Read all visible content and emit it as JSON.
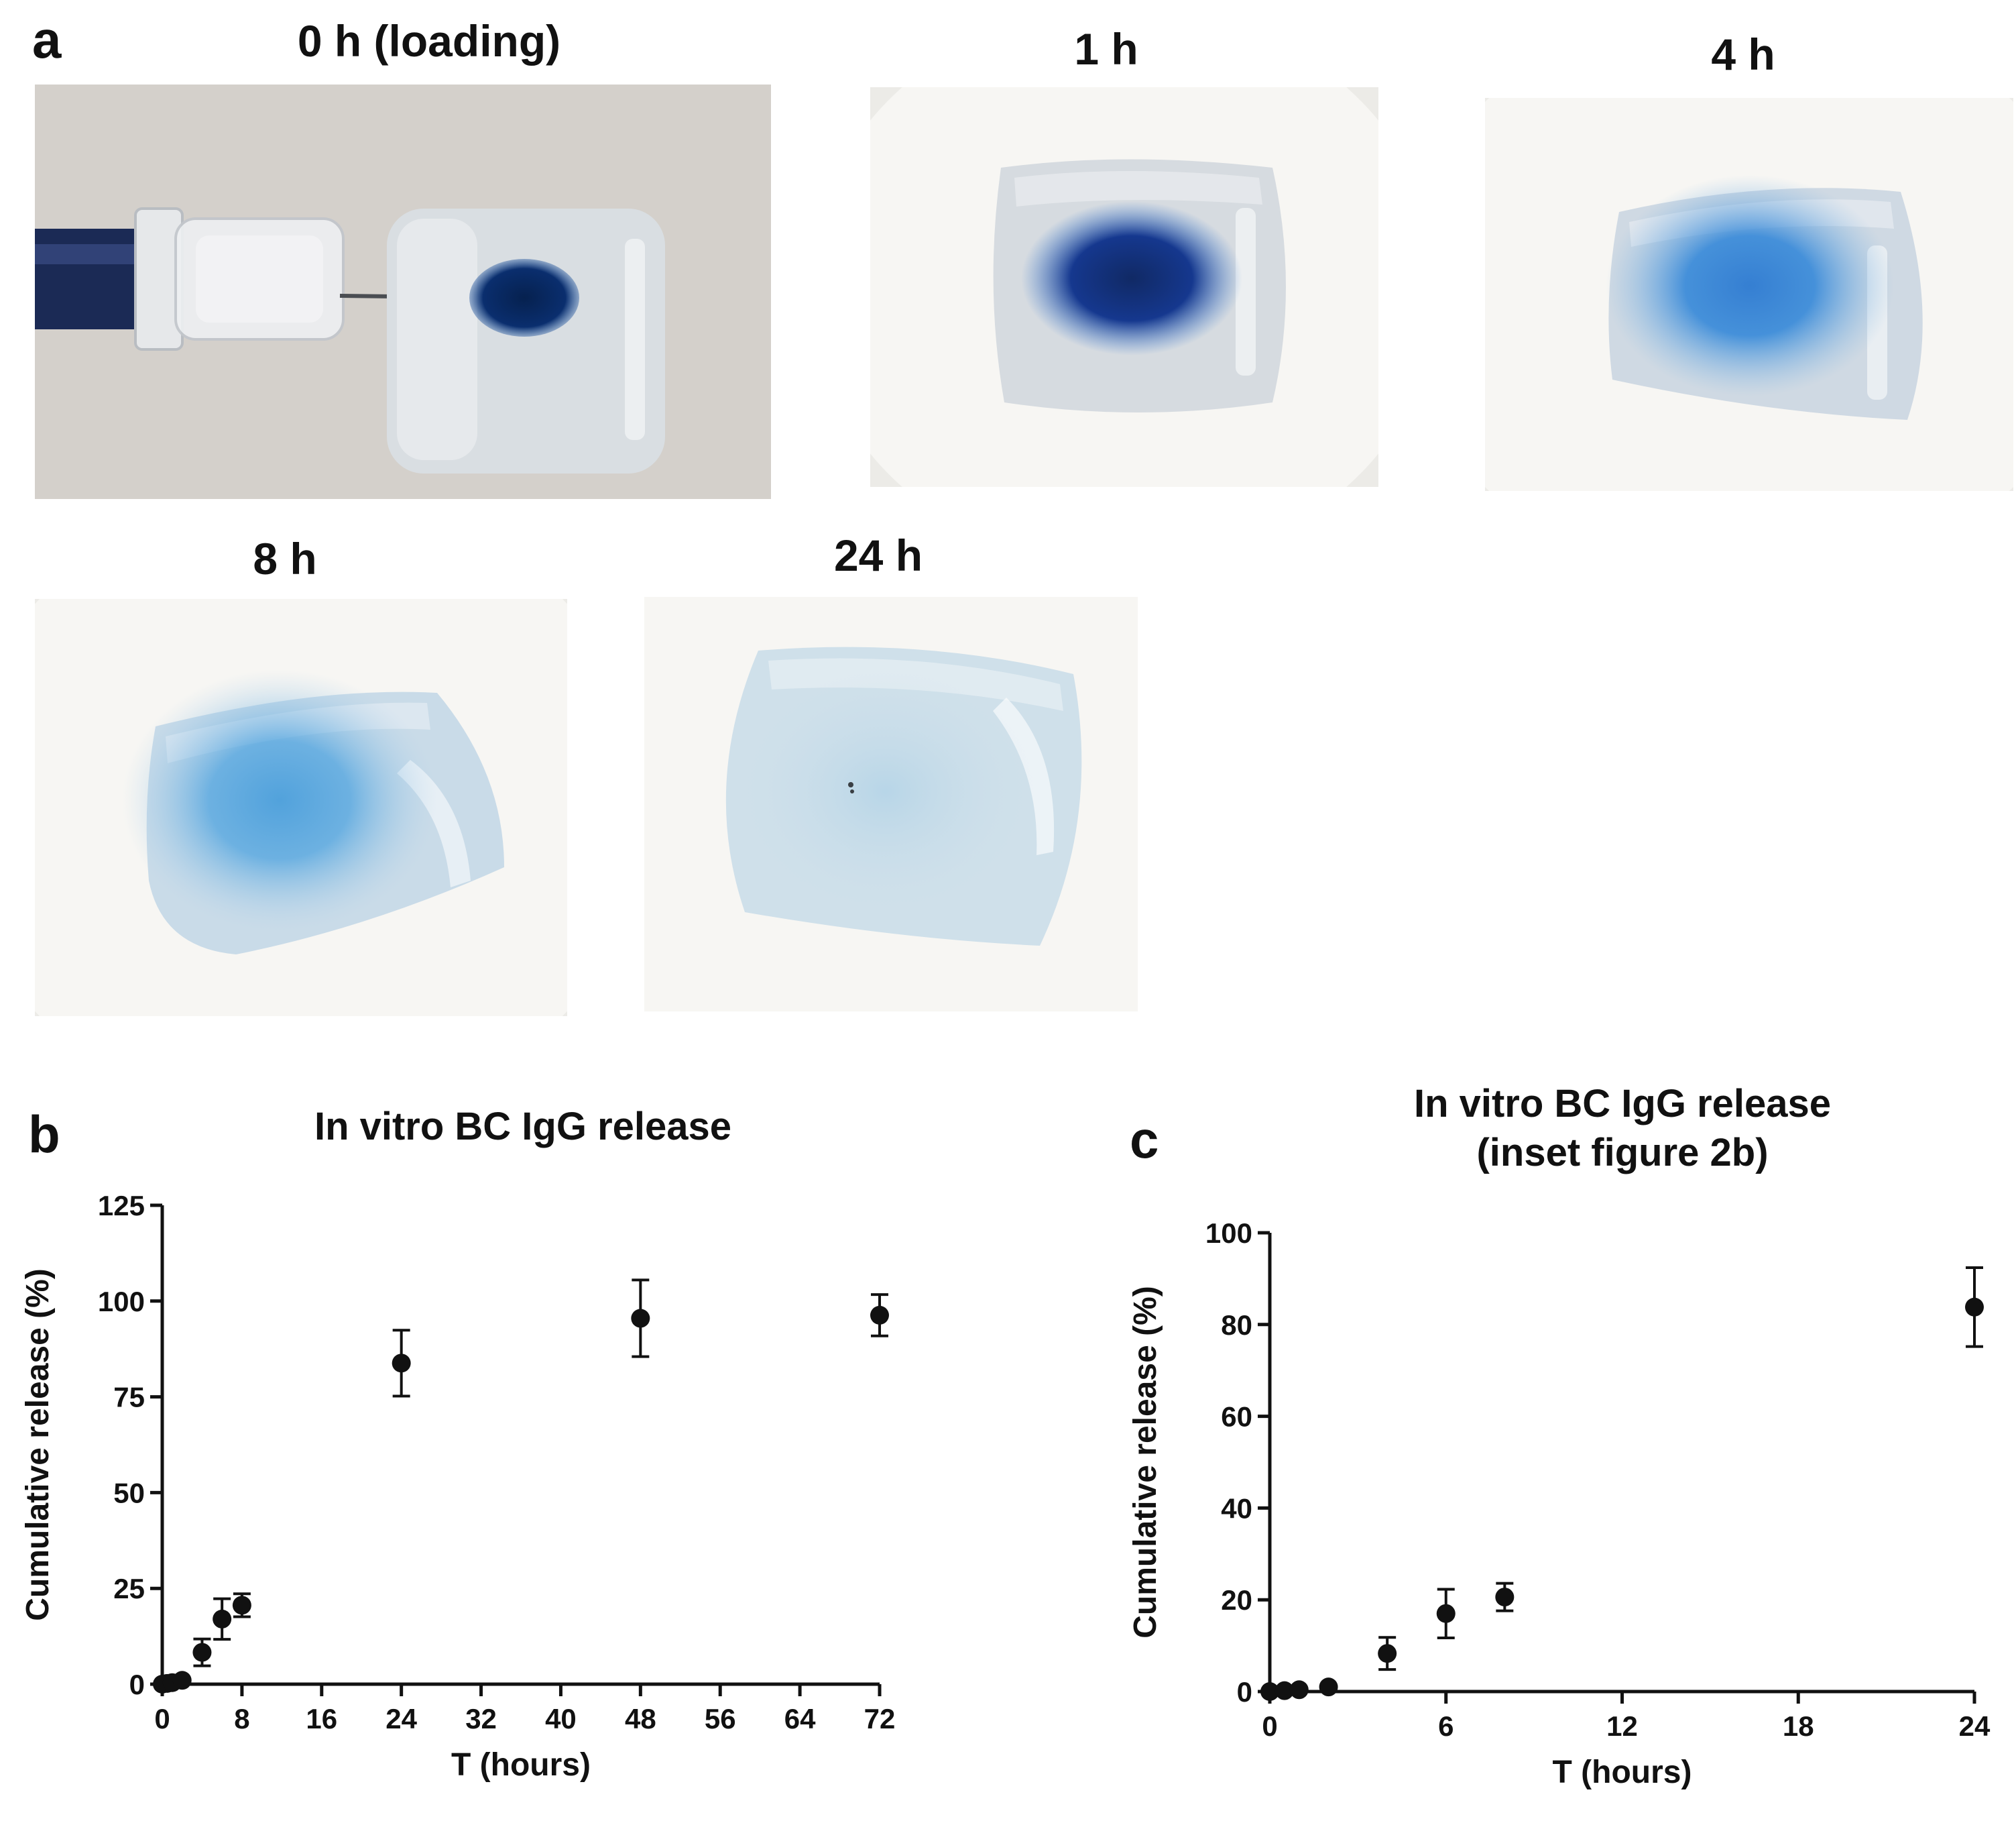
{
  "panel_a": {
    "letter": "a",
    "photos": [
      {
        "title": "0 h (loading)",
        "background": "#d4d0cb",
        "gel": "#d9dee2",
        "dye": "#0a2e6e",
        "dye_opacity": 1.0
      },
      {
        "title": "1 h",
        "background": "#ecebe7",
        "gel": "#d6dbe0",
        "dye": "#0b2f8a",
        "dye_opacity": 0.95
      },
      {
        "title": "4 h",
        "background": "#ecebe7",
        "gel": "#cfd9e3",
        "dye": "#1a6fcf",
        "dye_opacity": 0.85
      },
      {
        "title": "8 h",
        "background": "#ecebe7",
        "gel": "#c9dbe8",
        "dye": "#2a8fd8",
        "dye_opacity": 0.75
      },
      {
        "title": "24 h",
        "background": "#ecebe7",
        "gel": "#cfe0ea",
        "dye": "#8cc2e3",
        "dye_opacity": 0.35
      }
    ]
  },
  "panel_b": {
    "letter": "b"
  },
  "panel_c": {
    "letter": "c"
  },
  "chart_data": [
    {
      "type": "scatter",
      "title": "In vitro BC IgG release",
      "xlabel": "T (hours)",
      "ylabel": "Cumulative release (%)",
      "xlim": [
        0,
        72
      ],
      "ylim": [
        0,
        125
      ],
      "xticks": [
        0,
        8,
        16,
        24,
        32,
        40,
        48,
        56,
        64,
        72
      ],
      "yticks": [
        0,
        25,
        50,
        75,
        100,
        125
      ],
      "grid": false,
      "color": "#111111",
      "points": [
        {
          "x": 0,
          "y": 0,
          "err": 0.3
        },
        {
          "x": 0.5,
          "y": 0.2,
          "err": 0.3
        },
        {
          "x": 1,
          "y": 0.4,
          "err": 0.3
        },
        {
          "x": 2,
          "y": 1.0,
          "err": 0.5
        },
        {
          "x": 4,
          "y": 8.3,
          "err": 3.5
        },
        {
          "x": 6,
          "y": 17.0,
          "err": 5.3
        },
        {
          "x": 8,
          "y": 20.6,
          "err": 3.0
        },
        {
          "x": 24,
          "y": 83.8,
          "err": 8.6
        },
        {
          "x": 48,
          "y": 95.5,
          "err": 10.0
        },
        {
          "x": 72,
          "y": 96.3,
          "err": 5.4
        }
      ]
    },
    {
      "type": "scatter",
      "title": "In vitro BC IgG release\n(inset figure 2b)",
      "xlabel": "T (hours)",
      "ylabel": "Cumulative release (%)",
      "xlim": [
        0,
        24
      ],
      "ylim": [
        0,
        100
      ],
      "xticks": [
        0,
        6,
        12,
        18,
        24
      ],
      "yticks": [
        0,
        20,
        40,
        60,
        80,
        100
      ],
      "grid": false,
      "color": "#111111",
      "points": [
        {
          "x": 0,
          "y": 0,
          "err": 0.3
        },
        {
          "x": 0.5,
          "y": 0.2,
          "err": 0.3
        },
        {
          "x": 1,
          "y": 0.4,
          "err": 0.3
        },
        {
          "x": 2,
          "y": 1.0,
          "err": 0.5
        },
        {
          "x": 4,
          "y": 8.3,
          "err": 3.5
        },
        {
          "x": 6,
          "y": 17.0,
          "err": 5.3
        },
        {
          "x": 8,
          "y": 20.6,
          "err": 3.0
        },
        {
          "x": 24,
          "y": 83.8,
          "err": 8.6
        }
      ]
    }
  ]
}
